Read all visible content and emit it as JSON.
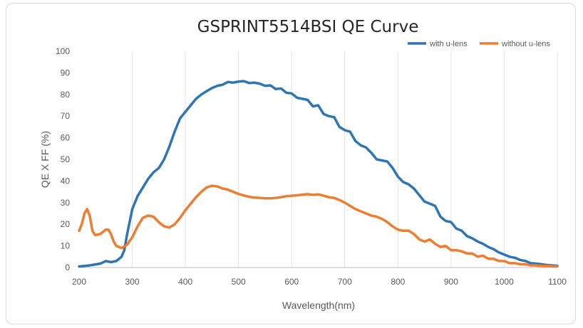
{
  "chart_data": {
    "type": "line",
    "title": "GSPRINT5514BSI QE Curve",
    "xlabel": "Wavelength(nm)",
    "ylabel": "QE X FF (%)",
    "xlim": [
      200,
      1100
    ],
    "ylim": [
      0,
      100
    ],
    "x_ticks": [
      200,
      300,
      400,
      500,
      600,
      700,
      800,
      900,
      1000,
      1100
    ],
    "y_ticks": [
      0,
      10,
      20,
      30,
      40,
      50,
      60,
      70,
      80,
      90,
      100
    ],
    "grid": "vertical",
    "legend_position": "top-right",
    "series": [
      {
        "name": "with u-lens",
        "color": "#2e75b6",
        "points": [
          [
            200,
            0.5
          ],
          [
            220,
            1
          ],
          [
            240,
            1.8
          ],
          [
            250,
            3
          ],
          [
            260,
            2.5
          ],
          [
            270,
            3
          ],
          [
            280,
            5
          ],
          [
            285,
            8
          ],
          [
            290,
            15
          ],
          [
            300,
            27
          ],
          [
            310,
            33
          ],
          [
            320,
            37
          ],
          [
            330,
            41
          ],
          [
            340,
            44
          ],
          [
            350,
            46
          ],
          [
            360,
            50
          ],
          [
            370,
            56
          ],
          [
            380,
            63
          ],
          [
            390,
            69
          ],
          [
            400,
            72
          ],
          [
            410,
            75
          ],
          [
            420,
            78
          ],
          [
            430,
            80
          ],
          [
            440,
            81.5
          ],
          [
            450,
            83
          ],
          [
            460,
            84
          ],
          [
            470,
            84.5
          ],
          [
            480,
            85.8
          ],
          [
            490,
            85.5
          ],
          [
            500,
            86
          ],
          [
            510,
            86.2
          ],
          [
            520,
            85.3
          ],
          [
            530,
            85.5
          ],
          [
            540,
            85
          ],
          [
            550,
            84
          ],
          [
            560,
            84.2
          ],
          [
            570,
            82.5
          ],
          [
            580,
            82.8
          ],
          [
            590,
            80.8
          ],
          [
            600,
            80.5
          ],
          [
            610,
            78.5
          ],
          [
            620,
            78
          ],
          [
            630,
            77.5
          ],
          [
            640,
            74.5
          ],
          [
            650,
            75
          ],
          [
            660,
            71
          ],
          [
            670,
            70
          ],
          [
            680,
            69.5
          ],
          [
            690,
            65
          ],
          [
            700,
            63.5
          ],
          [
            710,
            62.8
          ],
          [
            720,
            58.5
          ],
          [
            730,
            56.5
          ],
          [
            740,
            55.5
          ],
          [
            750,
            53
          ],
          [
            760,
            50
          ],
          [
            770,
            49.5
          ],
          [
            780,
            49
          ],
          [
            790,
            46
          ],
          [
            800,
            42
          ],
          [
            810,
            39.5
          ],
          [
            820,
            38.5
          ],
          [
            830,
            36.5
          ],
          [
            840,
            33.5
          ],
          [
            850,
            30.5
          ],
          [
            860,
            29.5
          ],
          [
            870,
            28.5
          ],
          [
            880,
            23.5
          ],
          [
            890,
            21.5
          ],
          [
            900,
            21
          ],
          [
            910,
            18
          ],
          [
            920,
            17
          ],
          [
            930,
            14.5
          ],
          [
            940,
            13.5
          ],
          [
            950,
            12
          ],
          [
            960,
            11
          ],
          [
            970,
            9.5
          ],
          [
            980,
            8.5
          ],
          [
            990,
            7
          ],
          [
            1000,
            6
          ],
          [
            1010,
            5
          ],
          [
            1020,
            4.5
          ],
          [
            1030,
            3.5
          ],
          [
            1040,
            3
          ],
          [
            1050,
            2
          ],
          [
            1060,
            1.8
          ],
          [
            1070,
            1.5
          ],
          [
            1080,
            1.2
          ],
          [
            1090,
            1
          ],
          [
            1100,
            0.8
          ]
        ]
      },
      {
        "name": "without  u-lens",
        "color": "#ed7d31",
        "points": [
          [
            200,
            17
          ],
          [
            205,
            20
          ],
          [
            210,
            25
          ],
          [
            215,
            27
          ],
          [
            220,
            24
          ],
          [
            225,
            17
          ],
          [
            230,
            15
          ],
          [
            240,
            15.5
          ],
          [
            250,
            17.5
          ],
          [
            255,
            17.5
          ],
          [
            260,
            15.5
          ],
          [
            265,
            12
          ],
          [
            270,
            10
          ],
          [
            280,
            9
          ],
          [
            290,
            10.5
          ],
          [
            300,
            14
          ],
          [
            310,
            19
          ],
          [
            320,
            23
          ],
          [
            330,
            24
          ],
          [
            340,
            23.5
          ],
          [
            350,
            21
          ],
          [
            360,
            19
          ],
          [
            370,
            18.5
          ],
          [
            380,
            20
          ],
          [
            390,
            23
          ],
          [
            400,
            26.5
          ],
          [
            410,
            29.5
          ],
          [
            420,
            32.5
          ],
          [
            430,
            35
          ],
          [
            440,
            37
          ],
          [
            450,
            37.8
          ],
          [
            460,
            37.5
          ],
          [
            470,
            36.5
          ],
          [
            480,
            36
          ],
          [
            490,
            35
          ],
          [
            500,
            34
          ],
          [
            510,
            33.3
          ],
          [
            520,
            32.7
          ],
          [
            530,
            32.3
          ],
          [
            540,
            32.2
          ],
          [
            550,
            32
          ],
          [
            560,
            32
          ],
          [
            570,
            32.2
          ],
          [
            580,
            32.5
          ],
          [
            590,
            33
          ],
          [
            600,
            33.2
          ],
          [
            610,
            33.4
          ],
          [
            620,
            33.7
          ],
          [
            630,
            33.9
          ],
          [
            640,
            33.6
          ],
          [
            650,
            33.8
          ],
          [
            660,
            33.2
          ],
          [
            670,
            32.5
          ],
          [
            680,
            32.2
          ],
          [
            690,
            31.2
          ],
          [
            700,
            30
          ],
          [
            710,
            28.5
          ],
          [
            720,
            27
          ],
          [
            730,
            26
          ],
          [
            740,
            25
          ],
          [
            750,
            24
          ],
          [
            760,
            23.5
          ],
          [
            770,
            22.5
          ],
          [
            780,
            21
          ],
          [
            790,
            19
          ],
          [
            800,
            17.5
          ],
          [
            810,
            17
          ],
          [
            820,
            17
          ],
          [
            830,
            15.5
          ],
          [
            840,
            13
          ],
          [
            850,
            12
          ],
          [
            860,
            13
          ],
          [
            870,
            11
          ],
          [
            880,
            9.5
          ],
          [
            890,
            10
          ],
          [
            900,
            8
          ],
          [
            910,
            8
          ],
          [
            920,
            7.5
          ],
          [
            930,
            6.5
          ],
          [
            940,
            6.5
          ],
          [
            950,
            5
          ],
          [
            960,
            5.5
          ],
          [
            970,
            4
          ],
          [
            980,
            4
          ],
          [
            990,
            3
          ],
          [
            1000,
            3
          ],
          [
            1010,
            2
          ],
          [
            1020,
            2
          ],
          [
            1030,
            1.5
          ],
          [
            1040,
            1.5
          ],
          [
            1050,
            1
          ],
          [
            1060,
            1
          ],
          [
            1070,
            0.8
          ],
          [
            1080,
            0.7
          ],
          [
            1090,
            0.6
          ],
          [
            1100,
            0.5
          ]
        ]
      }
    ]
  }
}
